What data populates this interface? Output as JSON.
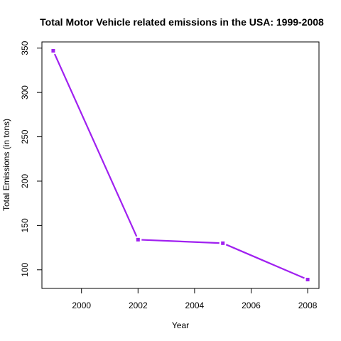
{
  "chart_data": {
    "type": "line",
    "title": "Total Motor Vehicle related emissions in the USA: 1999-2008",
    "xlabel": "Year",
    "ylabel": "Total Emissions (in tons)",
    "x": [
      1999,
      2002,
      2005,
      2008
    ],
    "series": [
      {
        "values": [
          347,
          134,
          130,
          89
        ]
      }
    ],
    "xlim": [
      1998.6,
      2008.4
    ],
    "ylim": [
      79,
      357
    ],
    "xticks": [
      2000,
      2002,
      2004,
      2006,
      2008
    ],
    "yticks": [
      100,
      150,
      200,
      250,
      300,
      350
    ],
    "line_color": "#A020F0",
    "marker": "square",
    "grid": false,
    "legend": "none"
  }
}
